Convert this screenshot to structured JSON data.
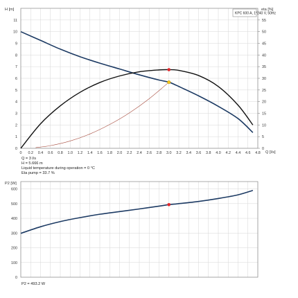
{
  "header": {
    "model_label": "KPC 600 A, 1*240 V, 50Hz"
  },
  "colors": {
    "head_curve": "#1c3a63",
    "eta_curve": "#111111",
    "system_curve": "#a64a3c",
    "power_curve": "#1c3a63",
    "op_point": "#e0262b",
    "op_point_eta": "#f0c419",
    "grid": "#d6d6d6"
  },
  "info": [
    "Q = 3 l/s",
    "H = 5.666 m",
    "Liquid temperature during operation = 0 °C",
    "Eta pump = 33.7 %"
  ],
  "footer": {
    "p2": "P2 = 493.2 W"
  },
  "chart_data": [
    {
      "type": "line",
      "title": "",
      "xlabel": "Q [l/s]",
      "ylabel": "H [m]",
      "y2label": "eta [%]",
      "xlim": [
        0,
        4.8
      ],
      "ylim": [
        0,
        12
      ],
      "y2lim": [
        0,
        60
      ],
      "x_ticks": [
        "0",
        "0.2",
        "0.4",
        "0.6",
        "0.8",
        "1.0",
        "1.2",
        "1.4",
        "1.6",
        "1.8",
        "2.0",
        "2.2",
        "2.4",
        "2.6",
        "2.8",
        "3.0",
        "3.2",
        "3.4",
        "3.6",
        "3.8",
        "4.0",
        "4.2",
        "4.4",
        "4.6",
        "4.8"
      ],
      "y_ticks": [
        "0",
        "1",
        "2",
        "3",
        "4",
        "5",
        "6",
        "7",
        "8",
        "9",
        "10",
        "11"
      ],
      "y2_ticks": [
        "0",
        "5",
        "10",
        "15",
        "20",
        "25",
        "30",
        "35",
        "40",
        "45",
        "50",
        "55"
      ],
      "grid": true,
      "series": [
        {
          "key": "head",
          "axis": "left",
          "x": [
            0,
            0.4,
            0.8,
            1.2,
            1.6,
            2.0,
            2.4,
            2.8,
            3.0,
            3.2,
            3.6,
            4.0,
            4.4,
            4.7
          ],
          "y": [
            10.0,
            9.25,
            8.5,
            7.85,
            7.3,
            6.8,
            6.3,
            5.85,
            5.67,
            5.3,
            4.5,
            3.6,
            2.55,
            1.35
          ]
        },
        {
          "key": "eta",
          "axis": "right",
          "x": [
            0,
            0.4,
            0.8,
            1.2,
            1.6,
            2.0,
            2.4,
            2.8,
            3.0,
            3.2,
            3.6,
            4.0,
            4.4,
            4.7
          ],
          "y": [
            0,
            10.5,
            18.2,
            24.0,
            28.2,
            31.0,
            32.8,
            33.6,
            33.7,
            33.4,
            31.2,
            26.5,
            18.5,
            10.0
          ]
        },
        {
          "key": "system",
          "axis": "left",
          "x": [
            0.3,
            0.6,
            1.0,
            1.4,
            1.8,
            2.2,
            2.6,
            3.0
          ],
          "y": [
            0.06,
            0.23,
            0.63,
            1.23,
            2.04,
            3.04,
            4.25,
            5.67
          ]
        }
      ],
      "operating_point": {
        "q": 3.0,
        "h": 5.666,
        "eta": 33.7
      }
    },
    {
      "type": "line",
      "title": "",
      "xlabel": "",
      "ylabel": "P2 [W]",
      "xlim": [
        0,
        4.8
      ],
      "ylim": [
        0,
        650
      ],
      "y_ticks": [
        "0",
        "100",
        "200",
        "300",
        "400",
        "500",
        "600"
      ],
      "grid": true,
      "series": [
        {
          "key": "power",
          "axis": "left",
          "x": [
            0,
            0.4,
            0.8,
            1.2,
            1.6,
            2.0,
            2.4,
            2.8,
            3.0,
            3.2,
            3.6,
            4.0,
            4.4,
            4.7
          ],
          "y": [
            298,
            343,
            378,
            405,
            428,
            446,
            464,
            483,
            493,
            500,
            515,
            535,
            560,
            590
          ]
        }
      ],
      "operating_point": {
        "q": 3.0,
        "p2": 493.2
      }
    }
  ]
}
